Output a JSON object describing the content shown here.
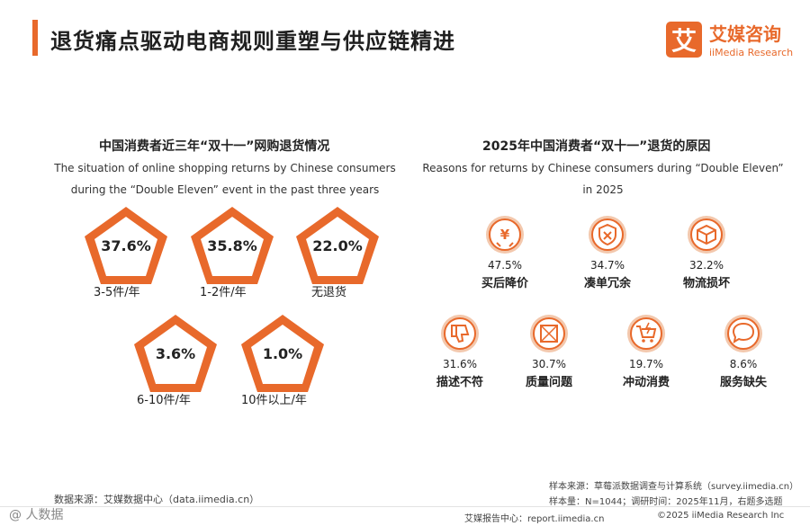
{
  "page_title": "退货痛点驱动电商规则重塑与供应链精进",
  "logo": {
    "mark": "艾",
    "cn": "艾媒咨询",
    "en": "iiMedia Research"
  },
  "left_panel": {
    "title": "中国消费者近三年“双十一”网购退货情况",
    "subtitle_line1": "The situation of online shopping returns by Chinese consumers",
    "subtitle_line2": "during the “Double Eleven” event in the past three years",
    "items": [
      {
        "value": "37.6%",
        "label": "3-5件/年"
      },
      {
        "value": "35.8%",
        "label": "1-2件/年"
      },
      {
        "value": "22.0%",
        "label": "无退货"
      },
      {
        "value": "3.6%",
        "label": "6-10件/年"
      },
      {
        "value": "1.0%",
        "label": "10件以上/年"
      }
    ]
  },
  "right_panel": {
    "title": "2025年中国消费者“双十一”退货的原因",
    "subtitle_line1": "Reasons for returns by Chinese consumers during “Double Eleven”",
    "subtitle_line2": "in 2025",
    "reasons": [
      {
        "pct": "47.5%",
        "label": "买后降价",
        "icon": "yen-price-drop-icon"
      },
      {
        "pct": "34.7%",
        "label": "凑单冗余",
        "icon": "shield-x-icon"
      },
      {
        "pct": "32.2%",
        "label": "物流损坏",
        "icon": "damaged-box-icon"
      },
      {
        "pct": "31.6%",
        "label": "描述不符",
        "icon": "thumb-down-icon"
      },
      {
        "pct": "30.7%",
        "label": "质量问题",
        "icon": "broken-item-icon"
      },
      {
        "pct": "19.7%",
        "label": "冲动消费",
        "icon": "cart-lightning-icon"
      },
      {
        "pct": "8.6%",
        "label": "服务缺失",
        "icon": "speech-bubble-icon"
      }
    ]
  },
  "notes": {
    "sample_source": "样本来源：草莓派数据调查与计算系统（survey.iimedia.cn）",
    "sample_info": "样本量：N=1044；调研时间：2025年11月，右题多选题",
    "data_source": "数据来源：艾媒数据中心（data.iimedia.cn）",
    "report_center": "艾媒报告中心：report.iimedia.cn",
    "copyright": "©2025  iiMedia Research  Inc",
    "watermark": "人数据",
    "watermark_prefix": "@"
  },
  "colors": {
    "accent": "#e8692b",
    "ring": "#f3c8ad"
  }
}
